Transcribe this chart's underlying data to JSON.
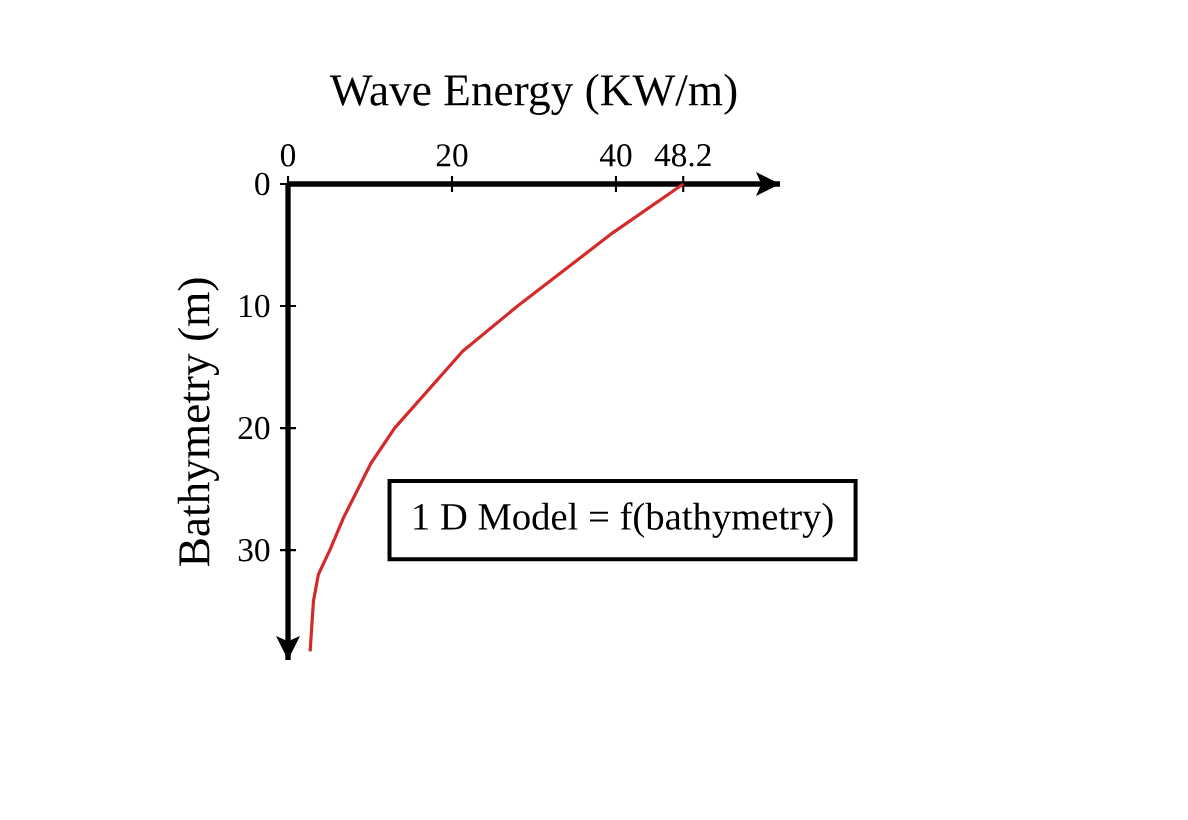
{
  "chart_data": {
    "type": "line",
    "xlabel": "Wave Energy (KW/m)",
    "ylabel": "Bathymetry (m)",
    "x": [
      48.2,
      39.6,
      28.0,
      21.3,
      13.0,
      10.1,
      6.8,
      5.1,
      3.7,
      3.1,
      2.7
    ],
    "series": [
      {
        "color": "#d42a2a",
        "values": [
          0,
          4,
          10,
          13.7,
          20,
          22.9,
          27.3,
          30,
          32,
          34.2,
          38.3
        ]
      }
    ],
    "xlim": [
      0,
      60
    ],
    "ylim": [
      39,
      0
    ],
    "xticks": [
      0,
      20,
      40,
      48.2
    ],
    "yticks": [
      0,
      10,
      20,
      30
    ],
    "annotations": [
      "1 D Model = f(bathymetry)"
    ],
    "marker": "none",
    "line_style": "solid"
  }
}
